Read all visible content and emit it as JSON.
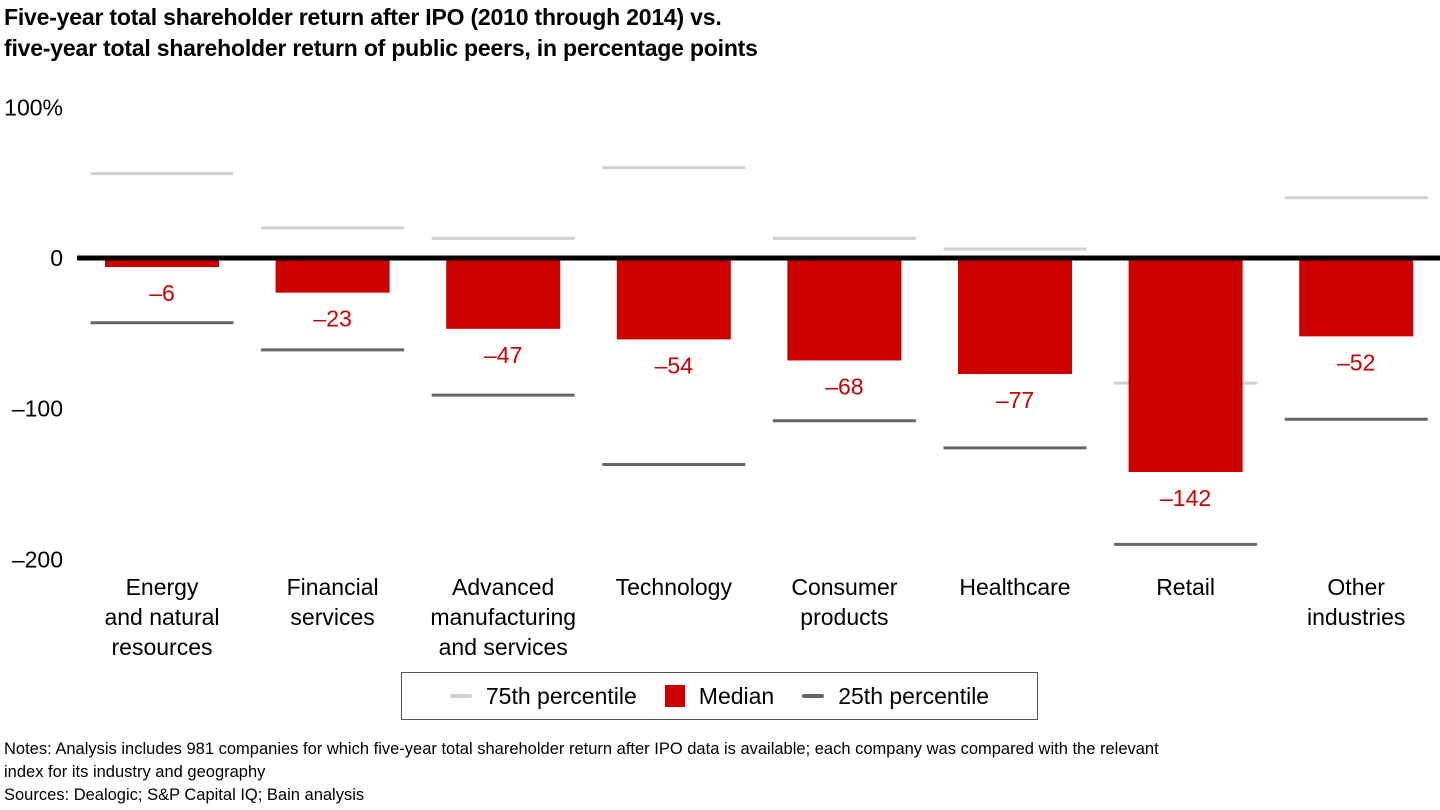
{
  "colors": {
    "median": "#cc0000",
    "p75": "#d0d0d0",
    "p25": "#666666",
    "zero_line": "#000000",
    "label": "#cc0000"
  },
  "chart_data": {
    "type": "bar",
    "title": "Five-year total shareholder return after IPO (2010 through 2014) vs. five-year total shareholder return of public peers, in percentage points",
    "title_lines": [
      "Five-year total shareholder return after IPO (2010 through 2014) vs.",
      "five-year total shareholder return of public peers, in percentage points"
    ],
    "xlabel": "",
    "ylabel": "",
    "ylim": [
      -200,
      100
    ],
    "yticks": [
      100,
      0,
      -100,
      -200
    ],
    "ytick_labels": [
      "100%",
      "0",
      "–100",
      "–200"
    ],
    "grid": false,
    "legend_position": "bottom",
    "categories": [
      "Energy and natural resources",
      "Financial services",
      "Advanced manufacturing and services",
      "Technology",
      "Consumer products",
      "Healthcare",
      "Retail",
      "Other industries"
    ],
    "category_label_lines": [
      [
        "Energy",
        "and natural",
        "resources"
      ],
      [
        "Financial",
        "services"
      ],
      [
        "Advanced",
        "manufacturing",
        "and services"
      ],
      [
        "Technology"
      ],
      [
        "Consumer",
        "products"
      ],
      [
        "Healthcare"
      ],
      [
        "Retail"
      ],
      [
        "Other",
        "industries"
      ]
    ],
    "series": [
      {
        "name": "75th percentile",
        "kind": "line",
        "values": [
          56,
          20,
          13,
          60,
          13,
          6,
          -83,
          40
        ]
      },
      {
        "name": "Median",
        "kind": "bar",
        "values": [
          -6,
          -23,
          -47,
          -54,
          -68,
          -77,
          -142,
          -52
        ]
      },
      {
        "name": "25th percentile",
        "kind": "line",
        "values": [
          -43,
          -61,
          -91,
          -137,
          -108,
          -126,
          -190,
          -107
        ]
      }
    ],
    "data_labels": [
      "–6",
      "–23",
      "–47",
      "–54",
      "–68",
      "–77",
      "–142",
      "–52"
    ]
  },
  "legend": {
    "items": [
      {
        "label": "75th percentile",
        "kind": "line-light"
      },
      {
        "label": "Median",
        "kind": "box"
      },
      {
        "label": "25th percentile",
        "kind": "line-dark"
      }
    ]
  },
  "notes": {
    "line1": "Notes: Analysis includes 981 companies for which five-year total shareholder return after IPO data is available; each company was compared with the relevant",
    "line2": "index for its industry and geography",
    "sources": "Sources: Dealogic; S&P Capital IQ; Bain analysis"
  }
}
